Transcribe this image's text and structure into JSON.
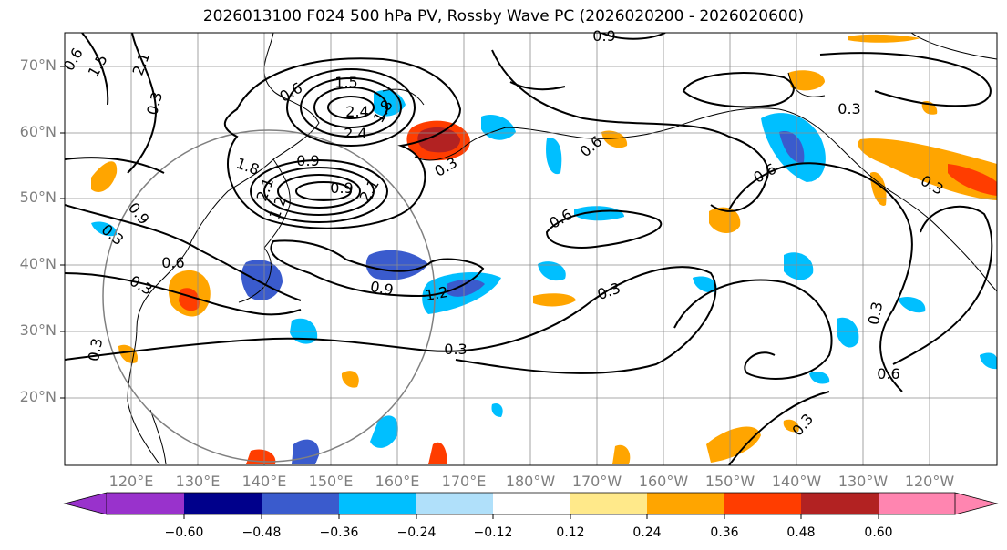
{
  "title": "2026013100 F024 500 hPa PV, Rossby Wave PC (2026020200 - 2026020600)",
  "latitude_labels": [
    "70°N",
    "60°N",
    "50°N",
    "40°N",
    "30°N",
    "20°N"
  ],
  "longitude_labels": [
    "120°E",
    "130°E",
    "140°E",
    "150°E",
    "160°E",
    "170°E",
    "180°W",
    "170°W",
    "160°W",
    "150°W",
    "140°W",
    "130°W",
    "120°W"
  ],
  "colorbar": {
    "ticks": [
      "−0.60",
      "−0.48",
      "−0.36",
      "−0.24",
      "−0.12",
      "0.12",
      "0.24",
      "0.36",
      "0.48",
      "0.60"
    ],
    "colors": [
      "#9932cc",
      "#00008b",
      "#3a5bcd",
      "#00bfff",
      "#b0e0fa",
      "#ffffff",
      "#ffe98a",
      "#ffa500",
      "#ff3d00",
      "#b22222",
      "#ff85b0"
    ]
  },
  "contour_labels": [
    "0.9",
    "1.5",
    "0.6",
    "2.1",
    "0.3",
    "0.6",
    "1.5",
    "2.4",
    "1.8",
    "2.4",
    "1.8",
    "0.9",
    "2.1",
    "1.2",
    "0.9",
    "2.1",
    "0.6",
    "0.3",
    "0.9",
    "1.2",
    "0.9",
    "0.6",
    "0.3",
    "0.3",
    "0.6",
    "0.3",
    "0.3",
    "0.6",
    "0.3",
    "0.3",
    "0.6",
    "0.3",
    "0.3",
    "0.3"
  ],
  "colors": {
    "contour": "#000000",
    "grid": "#8c8c8c",
    "coast": "#000000",
    "circle": "#808080"
  }
}
